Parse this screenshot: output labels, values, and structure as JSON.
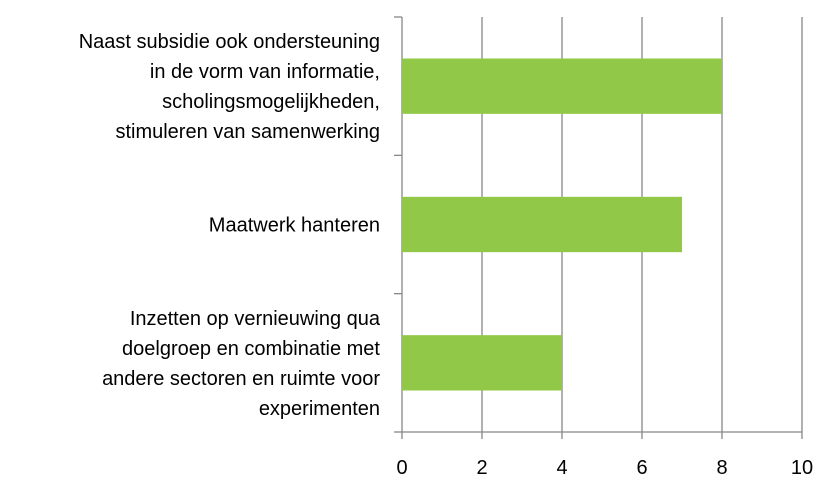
{
  "chart_data": {
    "type": "barh",
    "categories": [
      "Naast subsidie ook ondersteuning\nin de vorm van informatie,\nscholingsmogelijkheden,\nstimuleren van samenwerking",
      "Maatwerk hanteren",
      "Inzetten op vernieuwing qua\ndoelgroep en combinatie met\nandere sectoren en ruimte voor\nexperimenten"
    ],
    "values": [
      8,
      7,
      4
    ],
    "color": "#92c847",
    "xlim": [
      0,
      10
    ],
    "xticks": [
      0,
      2,
      4,
      6,
      8,
      10
    ],
    "grid": true
  }
}
